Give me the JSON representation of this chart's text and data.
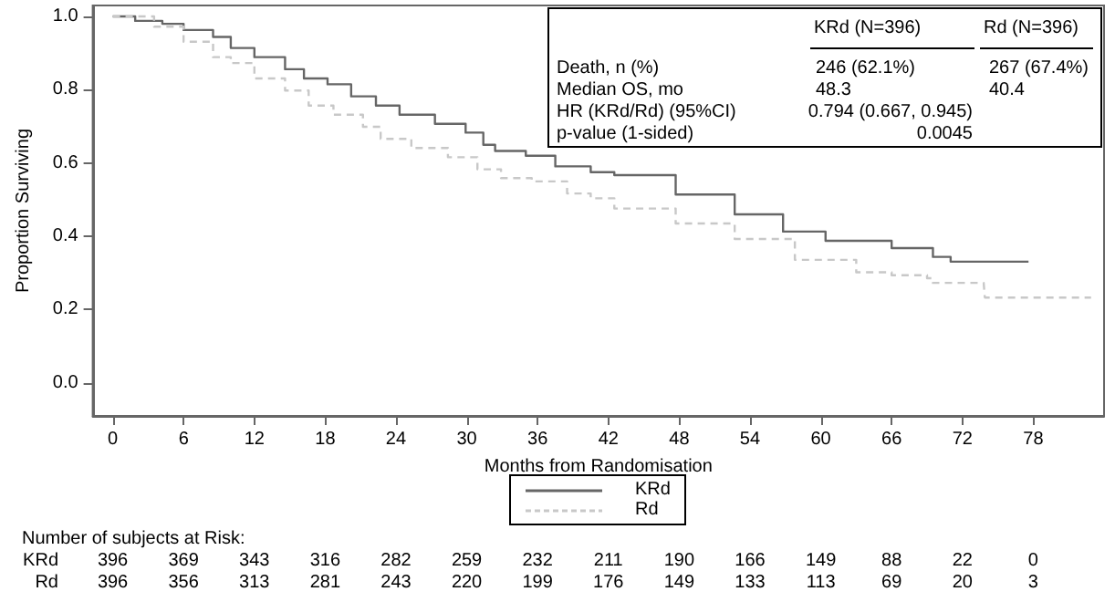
{
  "chart_data": {
    "type": "step",
    "xlabel": "Months from Randomisation",
    "ylabel": "Proportion Surviving",
    "xlim": [
      -1.7,
      84
    ],
    "xticks": [
      0,
      6,
      12,
      18,
      24,
      30,
      36,
      42,
      48,
      54,
      60,
      66,
      72,
      78
    ],
    "ylim": [
      -0.09,
      1.03
    ],
    "yticks": [
      {
        "value": 0,
        "label": "0.0"
      },
      {
        "value": 0.2,
        "label": "0.2"
      },
      {
        "value": 0.4,
        "label": "0.4"
      },
      {
        "value": 0.6,
        "label": "0.6"
      },
      {
        "value": 0.8,
        "label": "0.8"
      },
      {
        "value": 1,
        "label": "1.0"
      }
    ],
    "grid": false,
    "legend": "bottom",
    "marker": "none",
    "series": [
      {
        "name": "KRd",
        "color": "#666666",
        "line_style": "solid",
        "x": [
          0,
          1.9,
          4.2,
          6,
          8.5,
          10,
          12,
          14.6,
          16.2,
          18.2,
          20.2,
          22.3,
          24.3,
          27.3,
          29.9,
          31.4,
          32.4,
          35,
          37.5,
          40.5,
          42.5,
          47.7,
          52.7,
          56.8,
          60.4,
          66,
          69.5,
          71,
          77.6
        ],
        "values": [
          1.0,
          0.988,
          0.98,
          0.963,
          0.944,
          0.914,
          0.889,
          0.856,
          0.831,
          0.815,
          0.782,
          0.757,
          0.732,
          0.707,
          0.683,
          0.65,
          0.633,
          0.62,
          0.591,
          0.575,
          0.567,
          0.514,
          0.46,
          0.413,
          0.388,
          0.368,
          0.344,
          0.331,
          0.331
        ]
      },
      {
        "name": "Rd",
        "color": "#c8c8c8",
        "line_style": "dashed",
        "x": [
          0,
          3.5,
          6,
          8.5,
          10,
          12,
          14.6,
          16.6,
          18.7,
          21.2,
          22.7,
          25.3,
          28.4,
          30.9,
          32.9,
          35.5,
          38.5,
          40.5,
          42.5,
          47.7,
          52.7,
          57.8,
          63,
          66,
          69,
          69.5,
          73.8,
          73.9,
          82.9
        ],
        "values": [
          1.0,
          0.972,
          0.931,
          0.889,
          0.873,
          0.831,
          0.798,
          0.757,
          0.732,
          0.699,
          0.666,
          0.641,
          0.616,
          0.583,
          0.559,
          0.55,
          0.517,
          0.504,
          0.476,
          0.435,
          0.393,
          0.336,
          0.302,
          0.294,
          0.286,
          0.273,
          0.273,
          0.233,
          0.233
        ]
      }
    ],
    "annotations": [
      "KRd (N=396)",
      "Rd (N=396)",
      "Death, n (%)",
      "246 (62.1%)",
      "267 (67.4%)",
      "Median OS, mo",
      "48.3",
      "40.4",
      "HR (KRd/Rd) (95%CI)",
      "0.794 (0.667, 0.945)",
      "p-value (1-sided)",
      "0.0045",
      "Number of subjects at Risk:",
      "KRd 396 369 343 316 282 259 232 211 190 166 149 88 22 0",
      "Rd 396 356 313 281 243 220 199 176 149 133 113 69 20 3"
    ]
  }
}
